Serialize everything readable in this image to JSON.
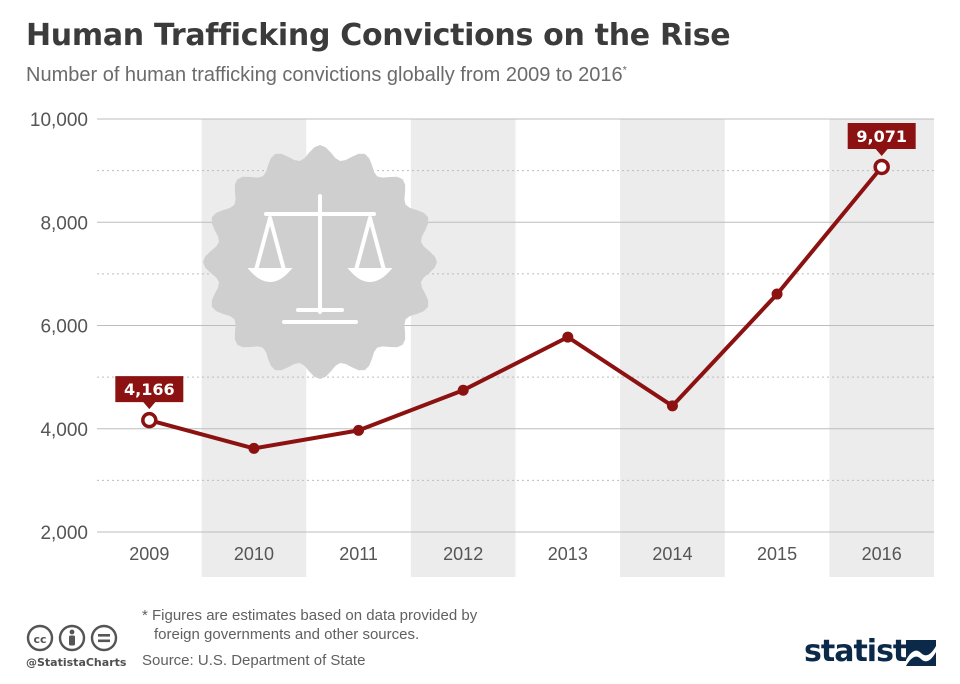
{
  "header": {
    "title": "Human Trafficking Convictions on the Rise",
    "subtitle": "Number of human trafficking convictions globally from 2009 to 2016",
    "subtitle_marker": "*"
  },
  "chart_data": {
    "type": "line",
    "title": "Human Trafficking Convictions on the Rise",
    "xlabel": "",
    "ylabel": "",
    "categories": [
      "2009",
      "2010",
      "2011",
      "2012",
      "2013",
      "2014",
      "2015",
      "2016"
    ],
    "series": [
      {
        "name": "Convictions",
        "values": [
          4166,
          3619,
          3969,
          4746,
          5776,
          4443,
          6609,
          9071
        ]
      }
    ],
    "ylim": [
      2000,
      10000
    ],
    "yticks": [
      2000,
      4000,
      6000,
      8000,
      10000
    ],
    "ytick_labels": [
      "2,000",
      "4,000",
      "6,000",
      "8,000",
      "10,000"
    ],
    "data_labels": [
      {
        "index": 0,
        "text": "4,166"
      },
      {
        "index": 7,
        "text": "9,071"
      }
    ],
    "grid": true,
    "colors": {
      "line": "#8c1212",
      "band": "#ececec",
      "grid": "#bdbdbd"
    }
  },
  "footer": {
    "footnote_line1": "* Figures are estimates based on data provided by",
    "footnote_line2": "foreign governments and other sources.",
    "source": "Source: U.S. Department of State",
    "handle": "@StatistaCharts",
    "brand": "statista",
    "cc_icons": [
      "cc-icon",
      "attribution-icon",
      "noderivs-icon"
    ]
  }
}
